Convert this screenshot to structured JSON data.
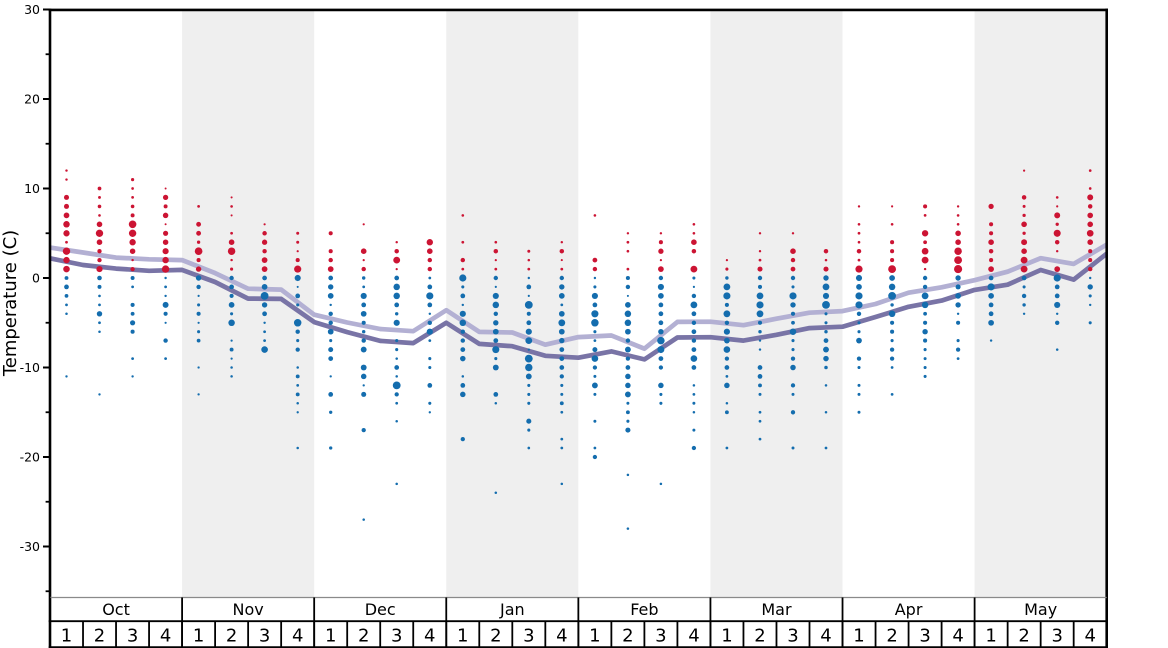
{
  "chart_data": {
    "type": "scatter",
    "description": "Weekly temperature distribution dot plot, October to May. Dot size indicates frequency of each temperature; red dots are temperatures above freezing, blue dots are at or below 0C. Two stepped lines show the average maximum (light) and average minimum (dark) temperature per week.",
    "ylabel": "Temperature (C)",
    "ylim": [
      -35.8,
      30.1
    ],
    "yticks_major": [
      30,
      20,
      10,
      0,
      -10,
      -20,
      -30
    ],
    "yticks_minor": [
      25,
      15,
      5,
      -5,
      -15,
      -25,
      -35
    ],
    "months": [
      "Oct",
      "Nov",
      "Dec",
      "Jan",
      "Feb",
      "Mar",
      "Apr",
      "May"
    ],
    "weeks": [
      "1",
      "2",
      "3",
      "4"
    ],
    "grid": "off",
    "legend": "none",
    "palette": {
      "red_dot": "#cc1433",
      "blue_dot": "#146dae",
      "avg_max_line": "#b3b0d3",
      "avg_min_line": "#7974a6",
      "band_fill": "#efefef",
      "frame": "#000000",
      "divider_gray": "#8a8a8a"
    },
    "avg_max_line": {
      "name": "average maximum temperature",
      "vertices_t": [
        3.4,
        2.85,
        2.28,
        2.09,
        2.0,
        0.55,
        -1.2,
        -1.3,
        -4.1,
        -4.97,
        -5.7,
        -5.94,
        -3.6,
        -6.02,
        -6.09,
        -7.45,
        -6.6,
        -6.42,
        -7.9,
        -4.91,
        -4.88,
        -5.27,
        -4.55,
        -3.88,
        -3.7,
        -2.9,
        -1.64,
        -1.04,
        -0.25,
        0.7,
        2.21,
        1.58,
        3.73
      ]
    },
    "avg_min_line": {
      "name": "average minimum temperature",
      "vertices_t": [
        2.2,
        1.45,
        1.05,
        0.81,
        0.9,
        -0.45,
        -2.3,
        -2.34,
        -4.93,
        -6.05,
        -7.03,
        -7.27,
        -5.01,
        -7.36,
        -7.62,
        -8.69,
        -8.9,
        -8.2,
        -9.1,
        -6.65,
        -6.62,
        -7.0,
        -6.35,
        -5.6,
        -5.44,
        -4.36,
        -3.22,
        -2.53,
        -1.33,
        -0.75,
        0.89,
        -0.18,
        2.72
      ]
    },
    "columns": [
      {
        "month": "Oct",
        "week": 1,
        "red": {
          "12": 2.2,
          "11": 2.2,
          "9": 4.6,
          "8": 4.6,
          "7": 5.2,
          "6": 5.9,
          "5": 5.7,
          "4": 2.5,
          "3": 6.7,
          "2": 5.8,
          "1": 5.9
        },
        "blue": {
          "0": 3.5,
          "-1": 4.3,
          "-2": 3.4,
          "-3": 2.5,
          "-4": 2.3,
          "-11": 2.2
        }
      },
      {
        "month": "Oct",
        "week": 2,
        "red": {
          "10": 3.4,
          "9": 2.6,
          "8": 3.3,
          "7": 2.4,
          "6": 5.1,
          "5": 6.7,
          "4": 5.1,
          "3": 3.9,
          "2": 3.9,
          "1": 5.6
        },
        "blue": {
          "0": 4.2,
          "-1": 3.6,
          "-2": 2.4,
          "-3": 2.5,
          "-4": 4.9,
          "-5": 2.5,
          "-6": 2.3,
          "-13": 2.2
        }
      },
      {
        "month": "Oct",
        "week": 3,
        "red": {
          "11": 2.9,
          "10": 2.4,
          "9": 2.5,
          "8": 3.3,
          "7": 3.6,
          "6": 6.9,
          "5": 6.7,
          "4": 5.8,
          "3": 5.0,
          "2": 2.2,
          "1": 3.9
        },
        "blue": {
          "0": 3.6,
          "-1": 2.5,
          "-3": 3.7,
          "-4": 3.5,
          "-5": 4.7,
          "-6": 3.7,
          "-9": 2.5,
          "-11": 2.2
        }
      },
      {
        "month": "Oct",
        "week": 4,
        "red": {
          "10": 1.8,
          "9": 4.8,
          "8": 3.6,
          "7": 5.0,
          "6": 1.8,
          "5": 4.7,
          "4": 5.0,
          "3": 5.6,
          "2": 5.8,
          "1": 6.7
        },
        "blue": {
          "0": 2.2,
          "-1": 2.5,
          "-2": 2.2,
          "-3": 5.4,
          "-4": 3.7,
          "-5": 2.0,
          "-7": 4.0,
          "-9": 2.5
        }
      },
      {
        "month": "Nov",
        "week": 1,
        "red": {
          "8": 2.5,
          "6": 4.4,
          "5": 4.4,
          "4": 3.0,
          "3": 7.0,
          "2": 3.7,
          "1": 4.9
        },
        "blue": {
          "0": 4.9,
          "-1": 4.0,
          "-2": 2.0,
          "-3": 2.8,
          "-4": 3.7,
          "-5": 2.0,
          "-6": 2.8,
          "-7": 3.4,
          "-10": 2.1,
          "-13": 2.1
        }
      },
      {
        "month": "Nov",
        "week": 2,
        "red": {
          "9": 1.9,
          "8": 2.4,
          "7": 1.9,
          "5": 2.5,
          "4": 5.1,
          "3": 6.8,
          "2": 2.2,
          "1": 2.8
        },
        "blue": {
          "0": 4.0,
          "-1": 4.3,
          "-2": 3.7,
          "-3": 5.2,
          "-4": 2.8,
          "-5": 5.9,
          "-7": 2.0,
          "-8": 3.5,
          "-9": 2.0,
          "-10": 2.3,
          "-11": 2.3
        }
      },
      {
        "month": "Nov",
        "week": 3,
        "red": {
          "6": 2.0,
          "5": 4.1,
          "4": 4.8,
          "3": 4.0,
          "2": 5.2,
          "1": 5.2
        },
        "blue": {
          "0": 4.3,
          "-1": 5.2,
          "-2": 7.1,
          "-3": 4.9,
          "-4": 4.3,
          "-5": 2.2,
          "-6": 2.5,
          "-7": 2.5,
          "-8": 6.0
        }
      },
      {
        "month": "Nov",
        "week": 4,
        "red": {
          "5": 2.7,
          "4": 2.7,
          "3": 2.0,
          "2": 3.7,
          "1": 6.5
        },
        "blue": {
          "0": 5.6,
          "-1": 1.9,
          "-2": 4.3,
          "-3": 2.8,
          "-5": 6.8,
          "-6": 4.0,
          "-7": 2.8,
          "-8": 3.9,
          "-10": 2.3,
          "-11": 3.5,
          "-12": 2.5,
          "-13": 3.5,
          "-14": 2.3,
          "-15": 2.1,
          "-19": 2.3
        }
      },
      {
        "month": "Dec",
        "week": 1,
        "red": {
          "5": 3.7,
          "3": 3.7,
          "2": 4.0,
          "1": 5.2
        },
        "blue": {
          "0": 4.3,
          "-1": 4.9,
          "-2": 5.2,
          "-3": 2.2,
          "-4": 4.0,
          "-5": 4.0,
          "-6": 5.2,
          "-7": 2.8,
          "-8": 4.5,
          "-9": 4.3,
          "-11": 2.1,
          "-13": 4.3,
          "-15": 3.0,
          "-19": 3.0
        }
      },
      {
        "month": "Dec",
        "week": 2,
        "red": {
          "6": 2.0,
          "3": 5.1,
          "2": 2.0,
          "1": 4.0
        },
        "blue": {
          "0": 3.1,
          "-1": 2.5,
          "-2": 5.6,
          "-3": 4.3,
          "-4": 5.2,
          "-5": 3.7,
          "-6": 3.1,
          "-7": 4.0,
          "-8": 5.3,
          "-10": 5.3,
          "-11": 5.0,
          "-12": 2.1,
          "-13": 4.6,
          "-17": 3.9,
          "-27": 2.3
        }
      },
      {
        "month": "Dec",
        "week": 3,
        "red": {
          "4": 2.2,
          "3": 4.1,
          "2": 6.2,
          "1": 2.0
        },
        "blue": {
          "0": 4.3,
          "-1": 5.9,
          "-2": 5.9,
          "-3": 4.3,
          "-4": 3.1,
          "-5": 5.6,
          "-7": 2.8,
          "-8": 2.8,
          "-9": 2.3,
          "-10": 4.3,
          "-11": 2.3,
          "-12": 7.1,
          "-13": 3.9,
          "-14": 2.5,
          "-16": 2.3,
          "-23": 2.3
        }
      },
      {
        "month": "Dec",
        "week": 4,
        "red": {
          "4": 5.8,
          "3": 5.1,
          "2": 4.0,
          "1": 4.0
        },
        "blue": {
          "0": 2.5,
          "-1": 4.3,
          "-2": 6.5,
          "-3": 4.3,
          "-4": 2.2,
          "-5": 4.0,
          "-6": 5.6,
          "-7": 2.5,
          "-9": 2.8,
          "-10": 2.8,
          "-12": 4.3,
          "-14": 2.8,
          "-15": 2.1
        }
      },
      {
        "month": "Jan",
        "week": 1,
        "red": {
          "7": 2.4,
          "4": 2.5,
          "2": 4.0,
          "1": 2.5
        },
        "blue": {
          "0": 6.5,
          "-1": 2.8,
          "-2": 4.3,
          "-3": 2.2,
          "-4": 5.6,
          "-5": 5.9,
          "-6": 4.0,
          "-7": 4.0,
          "-8": 4.3,
          "-9": 5.0,
          "-11": 2.3,
          "-12": 4.3,
          "-13": 5.0,
          "-18": 3.9
        }
      },
      {
        "month": "Jan",
        "week": 2,
        "red": {
          "4": 2.4,
          "3": 4.1,
          "2": 2.0,
          "1": 2.5
        },
        "blue": {
          "0": 4.0,
          "-1": 2.0,
          "-2": 5.6,
          "-3": 5.9,
          "-4": 4.0,
          "-5": 4.9,
          "-6": 5.2,
          "-7": 4.3,
          "-8": 6.4,
          "-9": 2.8,
          "-10": 5.3,
          "-13": 4.3,
          "-14": 2.3,
          "-24": 2.3
        }
      },
      {
        "month": "Jan",
        "week": 3,
        "red": {
          "3": 2.7,
          "2": 2.3,
          "1": 2.5
        },
        "blue": {
          "0": 2.2,
          "-1": 4.3,
          "-2": 2.0,
          "-3": 7.1,
          "-4": 3.7,
          "-5": 4.3,
          "-6": 5.6,
          "-7": 6.2,
          "-8": 2.1,
          "-9": 7.1,
          "-10": 6.7,
          "-11": 5.3,
          "-12": 2.8,
          "-13": 2.8,
          "-14": 2.8,
          "-16": 4.6,
          "-17": 2.8,
          "-19": 2.4
        }
      },
      {
        "month": "Jan",
        "week": 4,
        "red": {
          "4": 2.2,
          "3": 4.1,
          "2": 1.9,
          "1": 2.5
        },
        "blue": {
          "0": 4.0,
          "-1": 4.9,
          "-2": 5.2,
          "-3": 2.5,
          "-4": 5.2,
          "-5": 6.2,
          "-6": 5.2,
          "-7": 4.9,
          "-8": 4.3,
          "-9": 4.3,
          "-10": 4.3,
          "-11": 3.9,
          "-12": 2.8,
          "-13": 2.7,
          "-14": 3.5,
          "-15": 2.5,
          "-18": 2.5,
          "-19": 2.5,
          "-23": 2.3
        }
      },
      {
        "month": "Feb",
        "week": 1,
        "red": {
          "7": 2.4,
          "2": 4.3,
          "1": 4.0
        },
        "blue": {
          "0": 2.2,
          "-1": 2.8,
          "-2": 5.6,
          "-3": 4.3,
          "-4": 6.5,
          "-5": 6.8,
          "-6": 2.8,
          "-7": 2.5,
          "-8": 4.5,
          "-9": 6.0,
          "-10": 3.9,
          "-11": 2.7,
          "-12": 5.3,
          "-13": 2.7,
          "-16": 2.7,
          "-19": 2.5,
          "-20": 3.9
        }
      },
      {
        "month": "Feb",
        "week": 2,
        "red": {
          "5": 2.2,
          "4": 2.5,
          "3": 2.4,
          "1": 2.5
        },
        "blue": {
          "0": 3.7,
          "-1": 4.0,
          "-2": 1.9,
          "-3": 5.2,
          "-4": 5.9,
          "-5": 5.9,
          "-6": 5.2,
          "-7": 4.0,
          "-8": 5.3,
          "-9": 3.9,
          "-10": 4.3,
          "-11": 5.0,
          "-12": 5.0,
          "-13": 5.3,
          "-14": 2.7,
          "-15": 3.5,
          "-16": 2.8,
          "-17": 4.6,
          "-22": 2.3,
          "-28": 2.3
        }
      },
      {
        "month": "Feb",
        "week": 3,
        "red": {
          "5": 2.2,
          "4": 3.7,
          "3": 4.8,
          "2": 2.0,
          "1": 5.2
        },
        "blue": {
          "0": 4.0,
          "-1": 5.6,
          "-2": 5.2,
          "-3": 4.3,
          "-4": 4.3,
          "-5": 4.3,
          "-6": 4.9,
          "-7": 6.8,
          "-8": 6.3,
          "-9": 4.3,
          "-10": 3.9,
          "-12": 5.0,
          "-13": 2.8,
          "-14": 2.8,
          "-23": 2.3
        }
      },
      {
        "month": "Feb",
        "week": 4,
        "red": {
          "6": 2.4,
          "5": 2.4,
          "4": 5.1,
          "3": 4.1,
          "1": 6.2
        },
        "blue": {
          "0": 2.8,
          "-1": 2.0,
          "-2": 4.0,
          "-3": 6.2,
          "-4": 4.3,
          "-5": 4.0,
          "-6": 4.3,
          "-7": 4.0,
          "-8": 4.3,
          "-9": 6.0,
          "-10": 4.3,
          "-12": 2.3,
          "-13": 2.5,
          "-14": 2.7,
          "-15": 2.3,
          "-17": 2.7,
          "-19": 3.9
        }
      },
      {
        "month": "Mar",
        "week": 1,
        "red": {
          "2": 2.0,
          "1": 2.8
        },
        "blue": {
          "0": 3.1,
          "-1": 6.2,
          "-2": 6.5,
          "-3": 3.7,
          "-4": 6.2,
          "-5": 4.0,
          "-6": 5.6,
          "-7": 5.2,
          "-8": 6.0,
          "-9": 3.9,
          "-10": 4.3,
          "-11": 2.5,
          "-12": 5.0,
          "-14": 2.3,
          "-15": 3.5,
          "-19": 2.5
        }
      },
      {
        "month": "Mar",
        "week": 2,
        "red": {
          "5": 2.2,
          "3": 2.2,
          "2": 2.5,
          "1": 4.6
        },
        "blue": {
          "0": 4.0,
          "-1": 3.7,
          "-2": 6.2,
          "-3": 6.5,
          "-4": 6.2,
          "-5": 3.7,
          "-6": 3.1,
          "-7": 2.2,
          "-8": 2.2,
          "-10": 4.3,
          "-11": 4.3,
          "-12": 3.5,
          "-13": 2.7,
          "-15": 2.5,
          "-16": 2.5,
          "-18": 2.5
        }
      },
      {
        "month": "Mar",
        "week": 3,
        "red": {
          "5": 2.2,
          "3": 5.1,
          "2": 4.0,
          "1": 4.3
        },
        "blue": {
          "0": 4.0,
          "-1": 2.8,
          "-2": 6.5,
          "-3": 4.9,
          "-4": 3.7,
          "-5": 3.4,
          "-6": 5.9,
          "-7": 2.8,
          "-8": 2.8,
          "-9": 3.9,
          "-10": 5.0,
          "-12": 3.9,
          "-13": 2.7,
          "-15": 3.9,
          "-19": 2.7
        }
      },
      {
        "month": "Mar",
        "week": 4,
        "red": {
          "3": 4.1,
          "2": 2.3,
          "1": 4.6
        },
        "blue": {
          "0": 4.9,
          "-1": 6.2,
          "-2": 5.6,
          "-3": 7.1,
          "-4": 2.8,
          "-5": 2.8,
          "-6": 3.1,
          "-7": 4.3,
          "-8": 5.3,
          "-9": 5.0,
          "-10": 3.2,
          "-12": 2.3,
          "-15": 2.3,
          "-19": 2.5
        }
      },
      {
        "month": "Apr",
        "week": 1,
        "red": {
          "8": 2.2,
          "6": 2.4,
          "5": 2.5,
          "4": 2.4,
          "3": 4.1,
          "2": 2.5,
          "1": 6.5
        },
        "blue": {
          "0": 5.6,
          "-1": 5.2,
          "-2": 6.5,
          "-3": 6.5,
          "-4": 4.0,
          "-5": 2.8,
          "-6": 2.8,
          "-7": 5.2,
          "-9": 3.9,
          "-10": 2.8,
          "-12": 2.7,
          "-13": 2.7,
          "-15": 2.7
        }
      },
      {
        "month": "Apr",
        "week": 2,
        "red": {
          "8": 2.0,
          "6": 2.4,
          "4": 3.7,
          "3": 3.7,
          "2": 3.7,
          "1": 7.1
        },
        "blue": {
          "0": 5.2,
          "-1": 5.9,
          "-2": 7.1,
          "-3": 3.1,
          "-4": 5.9,
          "-5": 3.7,
          "-6": 3.7,
          "-7": 2.8,
          "-8": 3.9,
          "-9": 3.9,
          "-10": 2.5,
          "-13": 2.5
        }
      },
      {
        "month": "Apr",
        "week": 3,
        "red": {
          "8": 3.7,
          "7": 2.5,
          "5": 5.8,
          "4": 3.4,
          "3": 6.1,
          "2": 6.2,
          "1": 2.2
        },
        "blue": {
          "0": 4.0,
          "-1": 4.0,
          "-2": 6.2,
          "-3": 5.9,
          "-4": 3.4,
          "-5": 3.7,
          "-6": 4.9,
          "-7": 3.7,
          "-8": 2.8,
          "-9": 2.7,
          "-10": 2.8,
          "-11": 2.8
        }
      },
      {
        "month": "Apr",
        "week": 4,
        "red": {
          "8": 2.2,
          "7": 2.4,
          "6": 2.4,
          "5": 5.1,
          "4": 5.1,
          "3": 6.8,
          "2": 7.1,
          "1": 7.4
        },
        "blue": {
          "0": 4.9,
          "-1": 4.6,
          "-2": 5.2,
          "-3": 4.9,
          "-4": 2.2,
          "-5": 3.7,
          "-7": 2.8,
          "-8": 3.9,
          "-9": 2.5
        }
      },
      {
        "month": "May",
        "week": 1,
        "red": {
          "8": 4.8,
          "6": 3.7,
          "5": 3.7,
          "4": 5.1,
          "3": 4.1,
          "2": 3.7,
          "1": 5.2
        },
        "blue": {
          "0": 4.3,
          "-1": 6.5,
          "-2": 5.2,
          "-3": 4.3,
          "-4": 4.3,
          "-5": 5.2,
          "-7": 2.2
        }
      },
      {
        "month": "May",
        "week": 2,
        "red": {
          "12": 2.0,
          "9": 4.1,
          "8": 2.7,
          "7": 3.0,
          "6": 5.1,
          "5": 3.0,
          "4": 5.4,
          "3": 5.1,
          "2": 6.2,
          "1": 6.2
        },
        "blue": {
          "0": 4.3,
          "-1": 2.8,
          "-2": 4.0,
          "-3": 3.1,
          "-4": 2.2
        }
      },
      {
        "month": "May",
        "week": 3,
        "red": {
          "9": 2.4,
          "8": 2.0,
          "7": 5.4,
          "6": 3.0,
          "5": 6.4,
          "4": 4.1,
          "3": 2.2,
          "1": 5.2
        },
        "blue": {
          "0": 6.5,
          "-1": 4.3,
          "-2": 4.3,
          "-3": 5.6,
          "-4": 2.2,
          "-5": 4.0,
          "-8": 2.3
        }
      },
      {
        "month": "May",
        "week": 4,
        "red": {
          "12": 2.4,
          "10": 2.4,
          "9": 5.4,
          "8": 4.1,
          "7": 5.1,
          "6": 5.1,
          "5": 6.1,
          "4": 5.1,
          "3": 3.7,
          "2": 3.7,
          "1": 4.0
        },
        "blue": {
          "0": 2.2,
          "-1": 4.9,
          "-2": 2.8,
          "-3": 2.2,
          "-5": 2.8
        }
      }
    ]
  }
}
